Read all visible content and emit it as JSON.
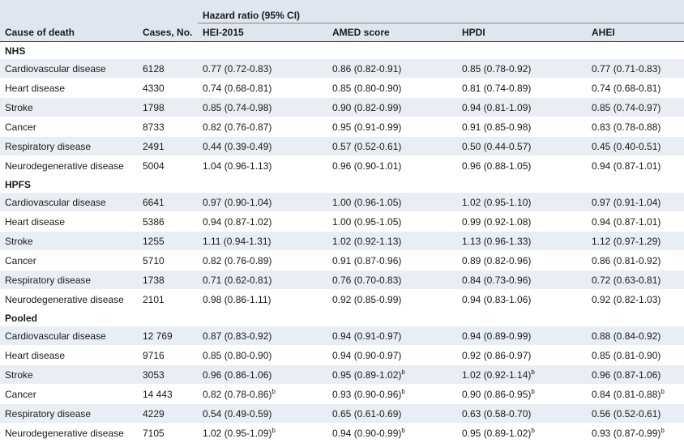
{
  "header": {
    "spanning": "Hazard ratio (95% CI)",
    "col_cause": "Cause of death",
    "col_cases": "Cases, No.",
    "col_hei": "HEI-2015",
    "col_amed": "AMED score",
    "col_hpdi": "HPDI",
    "col_ahei": "AHEI"
  },
  "groups": [
    {
      "name": "NHS",
      "rows": [
        {
          "cause": "Cardiovascular disease",
          "cases": "6128",
          "hei": "0.77 (0.72-0.83)",
          "amed": "0.86 (0.82-0.91)",
          "hpdi": "0.85 (0.78-0.92)",
          "ahei": "0.77 (0.71-0.83)"
        },
        {
          "cause": "Heart disease",
          "cases": "4330",
          "hei": "0.74 (0.68-0.81)",
          "amed": "0.85 (0.80-0.90)",
          "hpdi": "0.81 (0.74-0.89)",
          "ahei": "0.74 (0.68-0.81)"
        },
        {
          "cause": "Stroke",
          "cases": "1798",
          "hei": "0.85 (0.74-0.98)",
          "amed": "0.90 (0.82-0.99)",
          "hpdi": "0.94 (0.81-1.09)",
          "ahei": "0.85 (0.74-0.97)"
        },
        {
          "cause": "Cancer",
          "cases": "8733",
          "hei": "0.82 (0.76-0.87)",
          "amed": "0.95 (0.91-0.99)",
          "hpdi": "0.91 (0.85-0.98)",
          "ahei": "0.83 (0.78-0.88)"
        },
        {
          "cause": "Respiratory disease",
          "cases": "2491",
          "hei": "0.44 (0.39-0.49)",
          "amed": "0.57 (0.52-0.61)",
          "hpdi": "0.50 (0.44-0.57)",
          "ahei": "0.45 (0.40-0.51)"
        },
        {
          "cause": "Neurodegenerative disease",
          "cases": "5004",
          "hei": "1.04 (0.96-1.13)",
          "amed": "0.96 (0.90-1.01)",
          "hpdi": "0.96 (0.88-1.05)",
          "ahei": "0.94 (0.87-1.01)"
        }
      ]
    },
    {
      "name": "HPFS",
      "rows": [
        {
          "cause": "Cardiovascular disease",
          "cases": "6641",
          "hei": "0.97 (0.90-1.04)",
          "amed": "1.00 (0.96-1.05)",
          "hpdi": "1.02 (0.95-1.10)",
          "ahei": "0.97 (0.91-1.04)"
        },
        {
          "cause": "Heart disease",
          "cases": "5386",
          "hei": "0.94 (0.87-1.02)",
          "amed": "1.00 (0.95-1.05)",
          "hpdi": "0.99 (0.92-1.08)",
          "ahei": "0.94 (0.87-1.01)"
        },
        {
          "cause": "Stroke",
          "cases": "1255",
          "hei": "1.11 (0.94-1.31)",
          "amed": "1.02 (0.92-1.13)",
          "hpdi": "1.13 (0.96-1.33)",
          "ahei": "1.12 (0.97-1.29)"
        },
        {
          "cause": "Cancer",
          "cases": "5710",
          "hei": "0.82 (0.76-0.89)",
          "amed": "0.91 (0.87-0.96)",
          "hpdi": "0.89 (0.82-0.96)",
          "ahei": "0.86 (0.81-0.92)"
        },
        {
          "cause": "Respiratory disease",
          "cases": "1738",
          "hei": "0.71 (0.62-0.81)",
          "amed": "0.76 (0.70-0.83)",
          "hpdi": "0.84 (0.73-0.96)",
          "ahei": "0.72 (0.63-0.81)"
        },
        {
          "cause": "Neurodegenerative disease",
          "cases": "2101",
          "hei": "0.98 (0.86-1.11)",
          "amed": "0.92 (0.85-0.99)",
          "hpdi": "0.94 (0.83-1.06)",
          "ahei": "0.92 (0.82-1.03)"
        }
      ]
    },
    {
      "name": "Pooled",
      "rows": [
        {
          "cause": "Cardiovascular disease",
          "cases": "12 769",
          "hei": "0.87 (0.83-0.92)",
          "amed": "0.94 (0.91-0.97)",
          "hpdi": "0.94 (0.89-0.99)",
          "ahei": "0.88 (0.84-0.92)"
        },
        {
          "cause": "Heart disease",
          "cases": "9716",
          "hei": "0.85 (0.80-0.90)",
          "amed": "0.94 (0.90-0.97)",
          "hpdi": "0.92 (0.86-0.97)",
          "ahei": "0.85 (0.81-0.90)"
        },
        {
          "cause": "Stroke",
          "cases": "3053",
          "hei": "0.96 (0.86-1.06)",
          "amed": "0.95 (0.89-1.02)",
          "amed_sup": "b",
          "hpdi": "1.02 (0.92-1.14)",
          "hpdi_sup": "b",
          "ahei": "0.96 (0.87-1.06)"
        },
        {
          "cause": "Cancer",
          "cases": "14 443",
          "hei": "0.82 (0.78-0.86)",
          "hei_sup": "b",
          "amed": "0.93 (0.90-0.96)",
          "amed_sup": "b",
          "hpdi": "0.90 (0.86-0.95)",
          "hpdi_sup": "b",
          "ahei": "0.84 (0.81-0.88)",
          "ahei_sup": "b"
        },
        {
          "cause": "Respiratory disease",
          "cases": "4229",
          "hei": "0.54 (0.49-0.59)",
          "amed": "0.65 (0.61-0.69)",
          "hpdi": "0.63 (0.58-0.70)",
          "ahei": "0.56 (0.52-0.61)"
        },
        {
          "cause": "Neurodegenerative disease",
          "cases": "7105",
          "hei": "1.02 (0.95-1.09)",
          "hei_sup": "b",
          "amed": "0.94 (0.90-0.99)",
          "amed_sup": "b",
          "hpdi": "0.95 (0.89-1.02)",
          "hpdi_sup": "b",
          "ahei": "0.93 (0.87-0.99)",
          "ahei_sup": "b"
        }
      ]
    }
  ]
}
